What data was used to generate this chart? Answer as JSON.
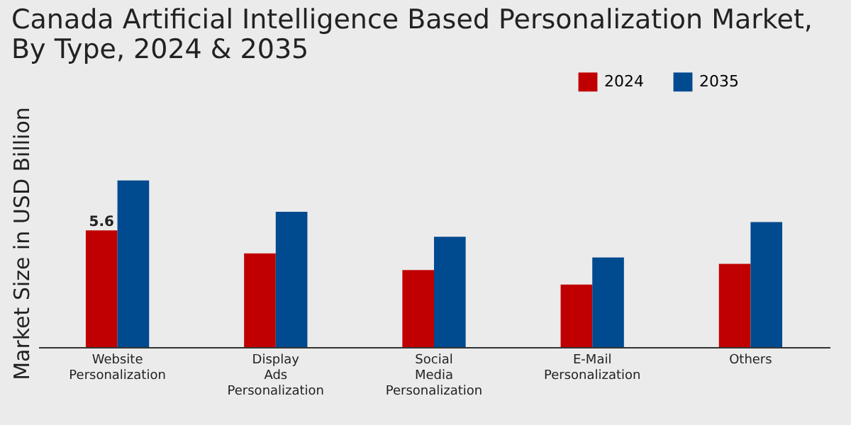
{
  "chart_data": {
    "type": "bar",
    "title": "Canada Artificial Intelligence Based Personalization Market, By Type, 2024 & 2035",
    "ylabel": "Market Size in USD Billion",
    "legend": "top right",
    "grid": false,
    "categories": [
      "Website Personalization",
      "Display Ads Personalization",
      "Social Media Personalization",
      "E-Mail Personalization",
      "Others"
    ],
    "series": [
      {
        "name": "2024",
        "color": "#c00000",
        "values": [
          5.6,
          4.5,
          3.7,
          3.0,
          4.0
        ],
        "value_labels": [
          "5.6",
          null,
          null,
          null,
          null
        ]
      },
      {
        "name": "2035",
        "color": "#004a8f",
        "values": [
          8.0,
          6.5,
          5.3,
          4.3,
          6.0
        ]
      }
    ]
  }
}
